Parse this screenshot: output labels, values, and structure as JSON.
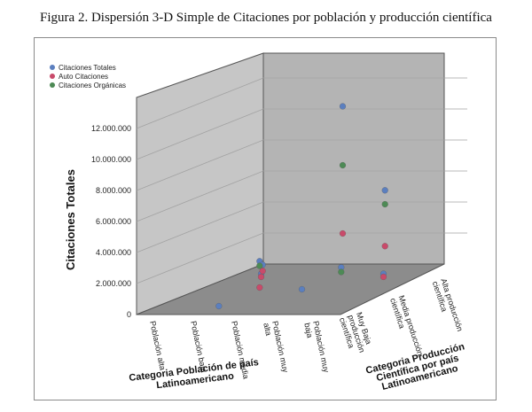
{
  "title": "Figura 2. Dispersión 3-D Simple de Citaciones por población y producción científica",
  "chart_data": {
    "type": "scatter",
    "subtype": "3d-scatter",
    "ylabel": "Citaciones Totales",
    "xlabel_line1": "Categoria Población de país",
    "xlabel_line2": "Latinoamericano",
    "zlabel_line1": "Categoria Producción",
    "zlabel_line2": "Científica por país",
    "zlabel_line3": "Latinoamericano",
    "ylim": [
      0,
      14000000
    ],
    "yticks": [
      0,
      2000000,
      4000000,
      6000000,
      8000000,
      10000000,
      12000000
    ],
    "ytick_labels": [
      "0",
      "2.000.000",
      "4.000.000",
      "6.000.000",
      "8.000.000",
      "10.000.000",
      "12.000.000"
    ],
    "x_categories": [
      "Población alta",
      "Población baja",
      "Población media",
      "Población muy alta",
      "Población muy baja"
    ],
    "z_categories": [
      "Muy Baja producción científica",
      "Media producción científica",
      "Alta producción científica"
    ],
    "legend": "top-left",
    "series": [
      {
        "name": "Citaciones Totales",
        "color": "#5b7fbf",
        "points": [
          {
            "x": "Población media",
            "z": "Muy Baja producción científica",
            "y": 2900000
          },
          {
            "x": "Población muy baja",
            "z": "Muy Baja producción científica",
            "y": 2500000
          },
          {
            "x": "Población muy alta",
            "z": "Media producción científica",
            "y": 11800000
          },
          {
            "x": "Población muy alta",
            "z": "Alta producción científica",
            "y": 5300000
          },
          {
            "x": "Población baja",
            "z": "Muy Baja producción científica",
            "y": 0
          },
          {
            "x": "Población media",
            "z": "Media producción científica",
            "y": 0
          },
          {
            "x": "Población alta",
            "z": "Alta producción científica",
            "y": 500000
          },
          {
            "x": "Población muy baja",
            "z": "Media producción científica",
            "y": 1000000
          },
          {
            "x": "Población baja",
            "z": "Media producción científica",
            "y": 1000000
          }
        ]
      },
      {
        "name": "Auto Citaciones",
        "color": "#c94a6a",
        "points": [
          {
            "x": "Población media",
            "z": "Muy Baja producción científica",
            "y": 1200000
          },
          {
            "x": "Población muy alta",
            "z": "Media producción científica",
            "y": 3600000
          },
          {
            "x": "Población muy alta",
            "z": "Alta producción científica",
            "y": 1700000
          },
          {
            "x": "Población muy baja",
            "z": "Media producción científica",
            "y": 800000
          },
          {
            "x": "Población baja",
            "z": "Media producción científica",
            "y": 800000
          },
          {
            "x": "Población alta",
            "z": "Alta producción científica",
            "y": 100000
          }
        ]
      },
      {
        "name": "Citaciones Orgánicas",
        "color": "#4d8a55",
        "points": [
          {
            "x": "Población media",
            "z": "Muy Baja producción científica",
            "y": 2600000
          },
          {
            "x": "Población muy alta",
            "z": "Media producción científica",
            "y": 8000000
          },
          {
            "x": "Población muy alta",
            "z": "Alta producción científica",
            "y": 4400000
          },
          {
            "x": "Población muy baja",
            "z": "Muy Baja producción científica",
            "y": 2200000
          }
        ]
      }
    ]
  }
}
